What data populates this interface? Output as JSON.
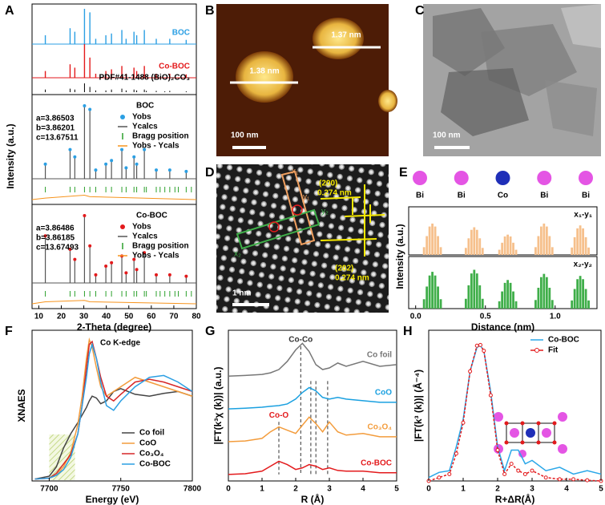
{
  "panel_labels": [
    "A",
    "B",
    "C",
    "D",
    "E",
    "F",
    "G",
    "H"
  ],
  "images": [
    {
      "panel": "B",
      "texts": [
        "1.37 nm",
        "1.38 nm",
        "100 nm"
      ]
    },
    {
      "panel": "C",
      "texts": [
        "100 nm"
      ]
    },
    {
      "panel": "D",
      "texts": [
        "(200)",
        "0.274 nm",
        "(202)",
        "0.274 nm",
        "1 nm",
        "x₁",
        "y₁",
        "x₂",
        "y₂"
      ]
    }
  ],
  "chart_data": [
    {
      "type": "stick",
      "xlim": [
        7,
        80
      ],
      "ylim": [
        0,
        1
      ],
      "series": [
        {
          "name": "BOC",
          "color": "#2b9fe3",
          "x": [
            12.9,
            23.9,
            26.0,
            30.3,
            32.7,
            35.3,
            39.8,
            42.3,
            46.9,
            48.8,
            52.3,
            53.5,
            56.9,
            62.2,
            68.2,
            75.5
          ],
          "values": [
            0.25,
            0.45,
            0.35,
            1.0,
            0.9,
            0.15,
            0.25,
            0.3,
            0.4,
            0.15,
            0.35,
            0.25,
            0.4,
            0.15,
            0.15,
            0.12
          ]
        },
        {
          "name": "Co-BOC",
          "color": "#e31a1c",
          "x": [
            12.9,
            23.9,
            26.0,
            30.3,
            32.7,
            35.3,
            39.8,
            42.3,
            46.9,
            48.8,
            52.3,
            53.5,
            56.9,
            62.2,
            68.2,
            75.5
          ],
          "values": [
            0.2,
            0.4,
            0.3,
            1.0,
            0.6,
            0.12,
            0.2,
            0.25,
            0.35,
            0.12,
            0.3,
            0.2,
            0.35,
            0.12,
            0.12,
            0.1
          ]
        },
        {
          "name": "PDF#41-1488 (BiO)₂CO₃",
          "color": "#000000",
          "x": [
            12.9,
            23.9,
            26.0,
            30.3,
            32.7,
            35.3,
            39.8,
            42.3,
            46.9,
            48.8,
            52.3,
            53.5,
            56.9,
            57.8,
            62.2,
            66.0,
            68.2,
            75.5
          ],
          "values": [
            0.3,
            0.4,
            0.3,
            1.0,
            0.6,
            0.2,
            0.2,
            0.3,
            0.4,
            0.2,
            0.3,
            0.2,
            0.3,
            0.15,
            0.15,
            0.1,
            0.15,
            0.1
          ]
        }
      ]
    },
    {
      "type": "refinement",
      "title": "BOC",
      "ylabel": "Intensity (a.u.)",
      "xlim": [
        7,
        80
      ],
      "ylim": [
        0,
        1
      ],
      "annotations": [
        "a=3.86503",
        "b=3.86201",
        "c=13.67511"
      ],
      "series": [
        {
          "name": "Yobs",
          "color": "#2b9fe3",
          "x": [
            12.9,
            23.9,
            26.0,
            30.3,
            32.7,
            35.3,
            39.8,
            42.3,
            46.9,
            48.8,
            52.3,
            53.5,
            56.9,
            62.2,
            68.2,
            75.5
          ],
          "values": [
            0.2,
            0.4,
            0.3,
            1.0,
            0.95,
            0.12,
            0.2,
            0.25,
            0.4,
            0.15,
            0.3,
            0.2,
            0.4,
            0.12,
            0.12,
            0.1
          ]
        },
        {
          "name": "Ycalcs",
          "color": "#555555",
          "x": [
            12.9,
            23.9,
            26.0,
            30.3,
            32.7,
            35.3,
            39.8,
            42.3,
            46.9,
            48.8,
            52.3,
            53.5,
            56.9,
            62.2,
            68.2,
            75.5
          ],
          "values": [
            0.2,
            0.4,
            0.3,
            1.0,
            0.95,
            0.12,
            0.2,
            0.25,
            0.4,
            0.15,
            0.3,
            0.2,
            0.4,
            0.12,
            0.12,
            0.1
          ]
        },
        {
          "name": "Bragg position",
          "color": "#2ca02c",
          "x": [
            12.9,
            23.9,
            26.0,
            30.3,
            32.7,
            35.3,
            39.8,
            42.3,
            46.9,
            48.8,
            52.3,
            53.5,
            56.9,
            57.8,
            62.2,
            63.9,
            66.0,
            68.2,
            70.5,
            72.0,
            75.5,
            77.8
          ]
        },
        {
          "name": "Yobs - Ycals",
          "color": "#f7941d",
          "x": [
            7,
            12.9,
            30.3,
            32.7,
            80
          ],
          "values": [
            0,
            0.02,
            0.06,
            0.04,
            0
          ]
        }
      ]
    },
    {
      "type": "refinement",
      "title": "Co-BOC",
      "xlabel": "2-Theta (degree)",
      "xlim": [
        7,
        80
      ],
      "ylim": [
        0,
        1
      ],
      "xticks": [
        10,
        20,
        30,
        40,
        50,
        60,
        70,
        80
      ],
      "annotations": [
        "a=3.86486",
        "b=3.86185",
        "c=13.67493"
      ],
      "series": [
        {
          "name": "Yobs",
          "color": "#e31a1c",
          "x": [
            12.9,
            23.9,
            26.0,
            30.3,
            32.7,
            35.3,
            39.8,
            42.3,
            46.9,
            48.8,
            52.3,
            53.5,
            56.9,
            62.2,
            68.2,
            75.5
          ],
          "values": [
            0.7,
            0.5,
            0.35,
            1.0,
            0.55,
            0.12,
            0.25,
            0.3,
            0.4,
            0.15,
            0.35,
            0.2,
            0.45,
            0.12,
            0.12,
            0.1
          ]
        },
        {
          "name": "Ycalcs",
          "color": "#555555",
          "x": [
            12.9,
            23.9,
            26.0,
            30.3,
            32.7,
            35.3,
            39.8,
            42.3,
            46.9,
            48.8,
            52.3,
            53.5,
            56.9,
            62.2,
            68.2,
            75.5
          ],
          "values": [
            0.7,
            0.5,
            0.35,
            1.0,
            0.55,
            0.12,
            0.25,
            0.3,
            0.4,
            0.15,
            0.35,
            0.2,
            0.45,
            0.12,
            0.12,
            0.1
          ]
        },
        {
          "name": "Bragg position",
          "color": "#2ca02c",
          "x": [
            12.9,
            23.9,
            26.0,
            30.3,
            32.7,
            35.3,
            39.8,
            42.3,
            46.9,
            48.8,
            52.3,
            53.5,
            56.9,
            57.8,
            62.2,
            63.9,
            66.0,
            68.2,
            70.5,
            72.0,
            75.5,
            77.8
          ]
        },
        {
          "name": "Yobs - Ycals",
          "color": "#f7941d",
          "x": [
            7,
            12.9,
            30.3,
            32.7,
            80
          ],
          "values": [
            0,
            0.03,
            0.05,
            0.03,
            0
          ]
        }
      ]
    },
    {
      "type": "bar",
      "ylabel": "Intensity (a.u.)",
      "xlim": [
        -0.05,
        1.3
      ],
      "ylim": [
        0,
        1
      ],
      "atoms": [
        {
          "label": "Bi",
          "color": "#e455e4"
        },
        {
          "label": "Bi",
          "color": "#e455e4"
        },
        {
          "label": "Co",
          "color": "#1f2fb8"
        },
        {
          "label": "Bi",
          "color": "#e455e4"
        },
        {
          "label": "Bi",
          "color": "#e455e4"
        }
      ],
      "x": [
        0.06,
        0.08,
        0.1,
        0.12,
        0.14,
        0.16,
        0.18,
        0.36,
        0.38,
        0.4,
        0.42,
        0.44,
        0.46,
        0.48,
        0.6,
        0.62,
        0.64,
        0.66,
        0.68,
        0.7,
        0.72,
        0.86,
        0.88,
        0.9,
        0.92,
        0.94,
        0.96,
        0.98,
        1.12,
        1.14,
        1.16,
        1.18,
        1.2,
        1.22,
        1.24
      ],
      "series": [
        {
          "name": "x₁-y₁",
          "color": "#f6c08c",
          "values": [
            0.21,
            0.51,
            0.77,
            0.85,
            0.77,
            0.51,
            0.21,
            0.19,
            0.45,
            0.68,
            0.75,
            0.68,
            0.45,
            0.19,
            0.14,
            0.33,
            0.5,
            0.55,
            0.5,
            0.33,
            0.14,
            0.21,
            0.51,
            0.77,
            0.85,
            0.77,
            0.51,
            0.21,
            0.2,
            0.48,
            0.72,
            0.8,
            0.72,
            0.48,
            0.2
          ]
        }
      ]
    },
    {
      "type": "bar",
      "xlabel": "Distance (nm)",
      "xlim": [
        -0.05,
        1.3
      ],
      "ylim": [
        0,
        1
      ],
      "xticks": [
        {
          "value": 0,
          "label": "0.0"
        },
        0.5,
        {
          "value": 1,
          "label": "1.0"
        }
      ],
      "x": [
        0.06,
        0.08,
        0.1,
        0.12,
        0.14,
        0.16,
        0.18,
        0.36,
        0.38,
        0.4,
        0.42,
        0.44,
        0.46,
        0.48,
        0.6,
        0.62,
        0.64,
        0.66,
        0.68,
        0.7,
        0.72,
        0.86,
        0.88,
        0.9,
        0.92,
        0.94,
        0.96,
        0.98,
        1.12,
        1.14,
        1.16,
        1.18,
        1.2,
        1.22,
        1.24
      ],
      "series": [
        {
          "name": "x₂-y₂",
          "color": "#3fae49",
          "values": [
            0.23,
            0.54,
            0.81,
            0.9,
            0.81,
            0.54,
            0.23,
            0.24,
            0.57,
            0.86,
            0.95,
            0.86,
            0.57,
            0.24,
            0.18,
            0.42,
            0.63,
            0.7,
            0.63,
            0.42,
            0.18,
            0.21,
            0.51,
            0.77,
            0.85,
            0.77,
            0.51,
            0.21,
            0.2,
            0.48,
            0.72,
            0.8,
            0.72,
            0.48,
            0.2
          ]
        }
      ]
    },
    {
      "type": "line",
      "title": "Co K-edge",
      "xlabel": "Energy (eV)",
      "ylabel": "XNAES",
      "xlim": [
        7688,
        7800
      ],
      "ylim": [
        0,
        1.6
      ],
      "xticks": [
        7700,
        7750,
        7800
      ],
      "legend": "lower right",
      "highlight": [
        7700,
        7718
      ],
      "x": [
        7690,
        7700,
        7705,
        7710,
        7715,
        7720,
        7723,
        7726,
        7728,
        7730,
        7733,
        7736,
        7740,
        7745,
        7750,
        7760,
        7770,
        7780,
        7790,
        7800
      ],
      "series": [
        {
          "name": "Co foil",
          "color": "#444444",
          "values": [
            0.02,
            0.05,
            0.15,
            0.35,
            0.5,
            0.62,
            0.7,
            0.78,
            0.85,
            0.9,
            0.88,
            0.82,
            0.85,
            0.95,
            0.98,
            0.92,
            0.9,
            0.93,
            0.95,
            0.9
          ]
        },
        {
          "name": "CoO",
          "color": "#f39c3c",
          "values": [
            0.02,
            0.03,
            0.06,
            0.15,
            0.3,
            0.6,
            0.9,
            1.3,
            1.5,
            1.42,
            1.2,
            1.0,
            0.9,
            0.95,
            1.0,
            1.1,
            1.05,
            1.0,
            0.95,
            0.9
          ]
        },
        {
          "name": "Co₃O₄",
          "color": "#d62728",
          "values": [
            0.02,
            0.03,
            0.08,
            0.18,
            0.28,
            0.5,
            0.8,
            1.2,
            1.45,
            1.48,
            1.3,
            1.1,
            0.9,
            0.85,
            0.92,
            1.05,
            1.08,
            1.05,
            1.0,
            0.95
          ]
        },
        {
          "name": "Co-BOC",
          "color": "#2b9fe3",
          "values": [
            0.02,
            0.03,
            0.06,
            0.12,
            0.25,
            0.5,
            0.8,
            1.1,
            1.35,
            1.45,
            1.3,
            1.05,
            0.8,
            0.75,
            0.85,
            1.0,
            1.1,
            1.12,
            1.05,
            0.95
          ]
        }
      ]
    },
    {
      "type": "line",
      "xlabel": "R (Å)",
      "ylabel": "|FT(k³χ (k))| (a.u.)",
      "xlim": [
        0,
        5
      ],
      "ylim": [
        -0.2,
        4.4
      ],
      "xticks": [
        0,
        1,
        2,
        3,
        4,
        5
      ],
      "legend": "inline",
      "dashed_lines": [
        {
          "x": 2.15,
          "label": "Co-Co"
        },
        {
          "x": 1.5,
          "label": "Co-O"
        },
        {
          "x": 2.6
        },
        {
          "x": 2.45
        },
        {
          "x": 2.95
        }
      ],
      "x": [
        0,
        0.5,
        1.0,
        1.25,
        1.5,
        1.75,
        2.0,
        2.2,
        2.4,
        2.6,
        2.8,
        3.0,
        3.25,
        3.5,
        4.0,
        4.5,
        5.0
      ],
      "series": [
        {
          "name": "Co foil",
          "color": "#777777",
          "values": [
            3.0,
            3.02,
            3.05,
            3.1,
            3.2,
            3.45,
            3.8,
            4.0,
            3.75,
            3.35,
            3.2,
            3.25,
            3.4,
            3.3,
            3.45,
            3.3,
            3.35
          ]
        },
        {
          "name": "CoO",
          "color": "#1aa0e0",
          "values": [
            2.0,
            2.02,
            2.05,
            2.08,
            2.1,
            2.15,
            2.3,
            2.5,
            2.65,
            2.55,
            2.35,
            2.3,
            2.35,
            2.3,
            2.25,
            2.2,
            2.2
          ]
        },
        {
          "name": "Co₃O₄",
          "color": "#f39c3c",
          "values": [
            1.0,
            1.02,
            1.1,
            1.3,
            1.45,
            1.35,
            1.25,
            1.5,
            1.75,
            1.55,
            1.3,
            1.6,
            1.3,
            1.2,
            1.25,
            1.15,
            1.15
          ]
        },
        {
          "name": "Co-BOC",
          "color": "#e31a1c",
          "values": [
            0.0,
            0.02,
            0.1,
            0.25,
            0.4,
            0.3,
            0.15,
            0.2,
            0.3,
            0.25,
            0.15,
            0.2,
            0.12,
            0.1,
            0.1,
            0.05,
            0.05
          ]
        }
      ]
    },
    {
      "type": "line",
      "xlabel": "R+ΔR(Å)",
      "ylabel": "|FT(k³  (k))| (Å⁻⁴)",
      "xlim": [
        0,
        5
      ],
      "ylim": [
        0,
        4.4
      ],
      "xticks": [
        0,
        1,
        2,
        3,
        4,
        5
      ],
      "legend": "upper right",
      "x": [
        0,
        0.3,
        0.6,
        0.8,
        1.0,
        1.2,
        1.4,
        1.5,
        1.6,
        1.8,
        2.0,
        2.2,
        2.4,
        2.6,
        2.8,
        3.0,
        3.4,
        3.8,
        4.2,
        4.6,
        5.0
      ],
      "series": [
        {
          "name": "Co-BOC",
          "color": "#2aa7e8",
          "values": [
            0.1,
            0.25,
            0.3,
            1.0,
            1.8,
            3.2,
            3.9,
            3.95,
            3.8,
            2.6,
            1.0,
            0.3,
            0.9,
            0.9,
            0.5,
            0.6,
            0.3,
            0.4,
            0.2,
            0.3,
            0.2
          ]
        },
        {
          "name": "Fit",
          "color": "#e31a1c",
          "marker": "circle",
          "values": [
            0,
            0.1,
            0.2,
            0.8,
            1.7,
            3.2,
            3.95,
            3.97,
            3.8,
            2.5,
            0.9,
            0.2,
            0.5,
            0.3,
            0.2,
            0.3,
            0.1,
            0.05,
            0.05,
            0.02,
            0.0
          ]
        }
      ]
    }
  ]
}
